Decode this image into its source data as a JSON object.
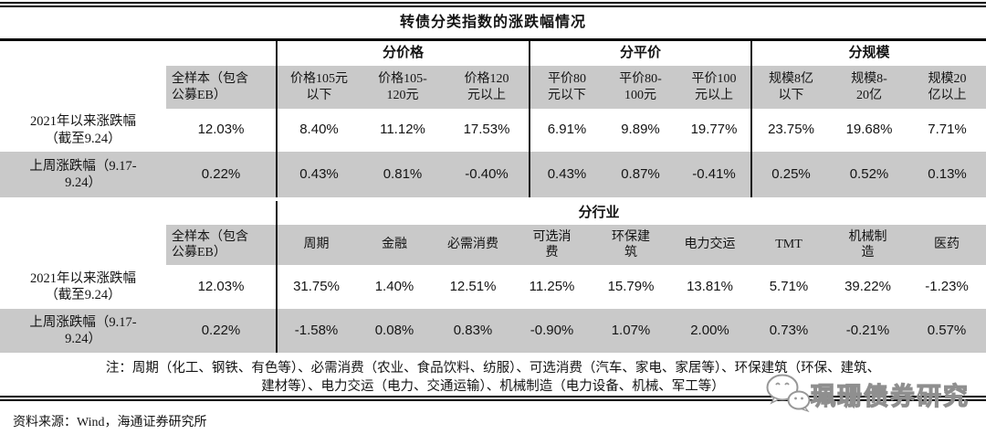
{
  "title": "转债分类指数的涨跌幅情况",
  "section_price_parity_size": {
    "groups": [
      "分价格",
      "分平价",
      "分规模"
    ],
    "columns": [
      "全样本（包含\n公募EB）",
      "价格105元\n以下",
      "价格105-\n120元",
      "价格120\n元以上",
      "平价80\n元以下",
      "平价80-\n100元",
      "平价100\n元以上",
      "规模8亿\n以下",
      "规模8-\n20亿",
      "规模20\n亿以上"
    ],
    "rows": [
      {
        "label": "2021年以来涨跌幅\n（截至9.24）",
        "values": [
          "12.03%",
          "8.40%",
          "11.12%",
          "17.53%",
          "6.91%",
          "9.89%",
          "19.77%",
          "23.75%",
          "19.68%",
          "7.71%"
        ]
      },
      {
        "label": "上周涨跌幅（9.17-\n9.24）",
        "values": [
          "0.22%",
          "0.43%",
          "0.81%",
          "-0.40%",
          "0.43%",
          "0.87%",
          "-0.41%",
          "0.25%",
          "0.52%",
          "0.13%"
        ]
      }
    ]
  },
  "section_industry": {
    "group": "分行业",
    "columns": [
      "全样本（包含\n公募EB）",
      "周期",
      "金融",
      "必需消费",
      "可选消\n费",
      "环保建\n筑",
      "电力交运",
      "TMT",
      "机械制\n造",
      "医药"
    ],
    "rows": [
      {
        "label": "2021年以来涨跌幅\n（截至9.24）",
        "values": [
          "12.03%",
          "31.75%",
          "1.40%",
          "12.51%",
          "11.25%",
          "15.79%",
          "13.81%",
          "5.71%",
          "39.22%",
          "-1.23%"
        ]
      },
      {
        "label": "上周涨跌幅（9.17-\n9.24）",
        "values": [
          "0.22%",
          "-1.58%",
          "0.08%",
          "0.83%",
          "-0.90%",
          "1.07%",
          "2.00%",
          "0.73%",
          "-0.21%",
          "0.57%"
        ]
      }
    ]
  },
  "notes": [
    "注：周期（化工、钢铁、有色等）、必需消费（农业、食品饮料、纺服）、可选消费（汽车、家电、家居等）、环保建筑（环保、建筑、",
    "建材等）、电力交运（电力、交通运输）、机械制造（电力设备、机械、军工等）"
  ],
  "source": "资料来源：Wind，海通证券研究所",
  "watermark": {
    "label": "珮珊债券研究",
    "icon": "wechat-icon"
  },
  "colors": {
    "row_gray": "#c9c9c9",
    "border": "#000000",
    "watermark_gray": "#8f8f8f"
  }
}
